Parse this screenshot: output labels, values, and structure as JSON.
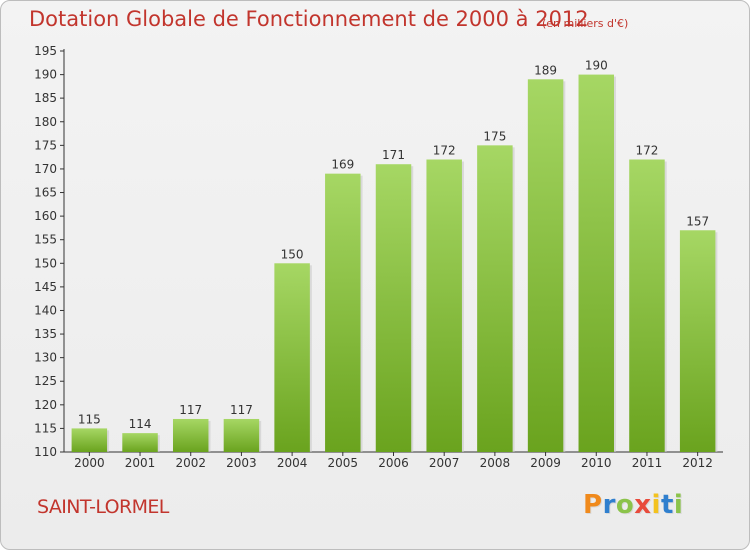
{
  "title": "Dotation Globale de Fonctionnement de 2000 à 2012",
  "unit_note": "(en milliers d'€)",
  "town": "SAINT-LORMEL",
  "logo": {
    "letters": [
      "P",
      "r",
      "o",
      "x",
      "i",
      "t",
      "i"
    ],
    "colors": [
      "#f08a1c",
      "#2f7fce",
      "#8bc34a",
      "#e84b3c",
      "#f3c21e",
      "#2f7fce",
      "#8bc34a"
    ]
  },
  "colors": {
    "bar_light": "#a6d764",
    "bar_dark": "#6aa31e",
    "text": "#c2352d",
    "axis": "#333333",
    "grid": "#d6d6d6"
  },
  "chart_data": {
    "type": "bar",
    "categories": [
      "2000",
      "2001",
      "2002",
      "2003",
      "2004",
      "2005",
      "2006",
      "2007",
      "2008",
      "2009",
      "2010",
      "2011",
      "2012"
    ],
    "values": [
      115,
      114,
      117,
      117,
      150,
      169,
      171,
      172,
      175,
      189,
      190,
      172,
      157
    ],
    "data_labels": [
      "115",
      "114",
      "117",
      "117",
      "150",
      "169",
      "171",
      "172",
      "175",
      "189",
      "190",
      "172",
      "157"
    ],
    "title": "Dotation Globale de Fonctionnement de 2000 à 2012",
    "subtitle": "(en milliers d'€)",
    "xlabel": "",
    "ylabel": "",
    "ylim": [
      110,
      195
    ],
    "yticks": [
      110,
      115,
      120,
      125,
      130,
      135,
      140,
      145,
      150,
      155,
      160,
      165,
      170,
      175,
      180,
      185,
      190,
      195
    ],
    "grid": false,
    "legend": "none"
  }
}
